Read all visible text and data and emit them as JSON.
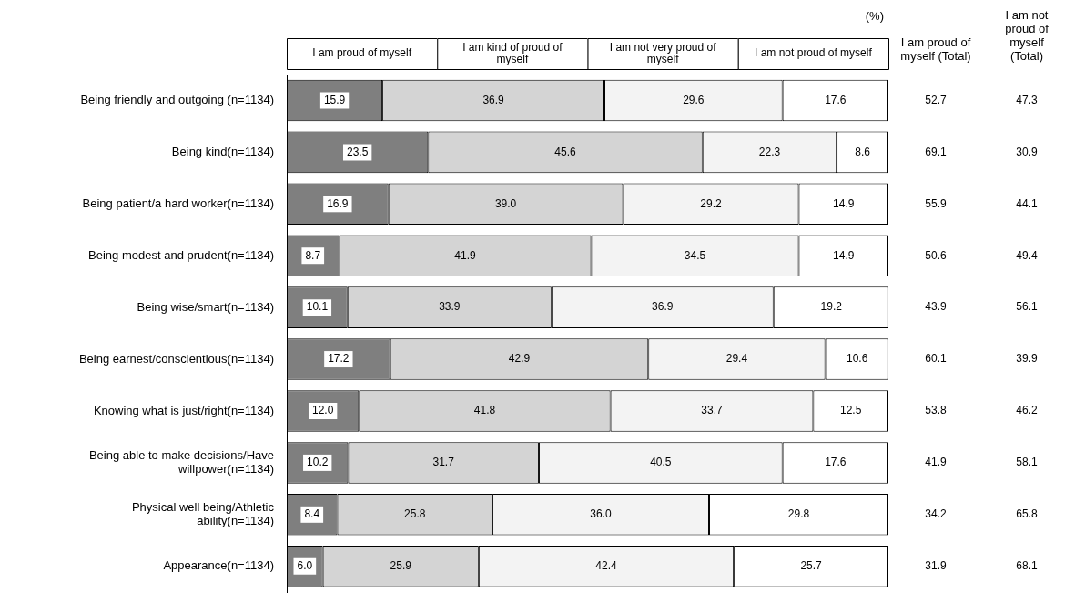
{
  "chart_data": {
    "type": "bar",
    "orientation": "horizontal",
    "stacked": true,
    "grid": false,
    "legend": "top",
    "tick_labels": "y",
    "xlim": [
      0,
      100
    ],
    "categories": [
      "Being friendly and outgoing (n=1134)",
      "Being kind(n=1134)",
      "Being patient/a hard worker(n=1134)",
      "Being modest and prudent(n=1134)",
      "Being wise/smart(n=1134)",
      "Being earnest/conscientious(n=1134)",
      "Knowing what is just/right(n=1134)",
      "Being able to make decisions/Have willpower(n=1134)",
      "Physical well being/Athletic ability(n=1134)",
      "Appearance(n=1134)"
    ],
    "series": [
      {
        "name": "I am proud of myself",
        "color": "#7f7f7f",
        "values": [
          15.9,
          23.5,
          16.9,
          8.7,
          10.1,
          17.2,
          12.0,
          10.2,
          8.4,
          6.0
        ],
        "value_labels": [
          "15.9",
          "23.5",
          "16.9",
          "8.7",
          "10.1",
          "17.2",
          "12.0",
          "10.2",
          "8.4",
          "6.0"
        ]
      },
      {
        "name": "I am kind of proud of myself",
        "color": "#d4d4d4",
        "values": [
          36.9,
          45.6,
          39.0,
          41.9,
          33.9,
          42.9,
          41.8,
          31.7,
          25.8,
          25.9
        ],
        "value_labels": [
          "36.9",
          "45.6",
          "39.0",
          "41.9",
          "33.9",
          "42.9",
          "41.8",
          "31.7",
          "25.8",
          "25.9"
        ]
      },
      {
        "name": "I am not very proud of myself",
        "color": "#f3f3f3",
        "values": [
          29.6,
          22.3,
          29.2,
          34.5,
          36.9,
          29.4,
          33.7,
          40.5,
          36.0,
          42.4
        ],
        "value_labels": [
          "29.6",
          "22.3",
          "29.2",
          "34.5",
          "36.9",
          "29.4",
          "33.7",
          "40.5",
          "36.0",
          "42.4"
        ]
      },
      {
        "name": "I am not proud of myself",
        "color": "#ffffff",
        "values": [
          17.6,
          8.6,
          14.9,
          14.9,
          19.2,
          10.6,
          12.5,
          17.6,
          29.8,
          25.7
        ],
        "value_labels": [
          "17.6",
          "8.6",
          "14.9",
          "14.9",
          "19.2",
          "10.6",
          "12.5",
          "17.6",
          "29.8",
          "25.7"
        ]
      }
    ],
    "annotations": [
      "(%)",
      "I am proud of myself (Total)",
      "I am not proud of myself (Total)",
      "52.7",
      "69.1",
      "55.9",
      "50.6",
      "43.9",
      "60.1",
      "53.8",
      "41.9",
      "34.2",
      "31.9",
      "47.3",
      "30.9",
      "44.1",
      "49.4",
      "56.1",
      "39.9",
      "46.2",
      "58.1",
      "65.8",
      "68.1"
    ]
  }
}
